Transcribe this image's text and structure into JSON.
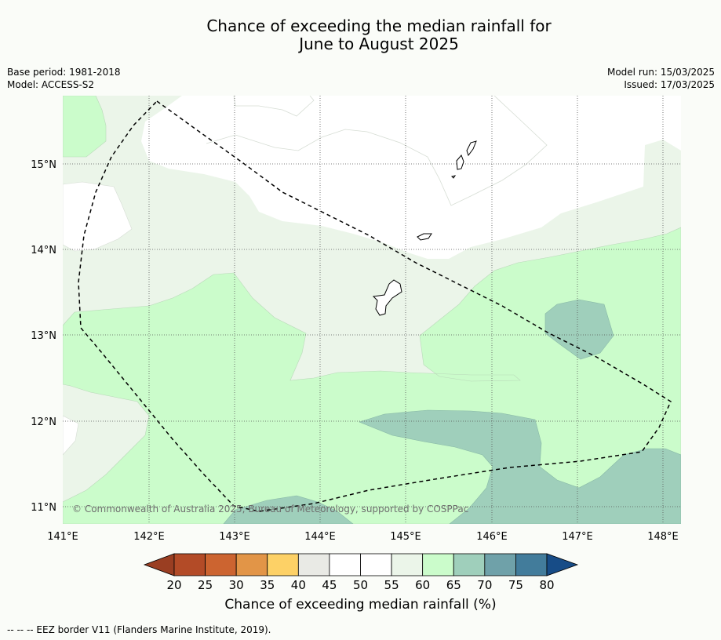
{
  "title": {
    "line1": "Chance of exceeding the median rainfall for",
    "line2": "June to August 2025"
  },
  "meta_left": {
    "base_period": "Base period: 1981-2018",
    "model": "Model: ACCESS-S2"
  },
  "meta_right": {
    "model_run": "Model run: 15/03/2025",
    "issued": "Issued: 17/03/2025"
  },
  "map": {
    "lon_labels": [
      "141°E",
      "142°E",
      "143°E",
      "144°E",
      "145°E",
      "146°E",
      "147°E",
      "148°E"
    ],
    "lat_labels": [
      "15°N",
      "14°N",
      "13°N",
      "12°N",
      "11°N"
    ],
    "copyright": "© Commonwealth of Australia 2025, Bureau of Meteorology, supported by COSPPac"
  },
  "colorbar": {
    "ticks": [
      "20",
      "25",
      "30",
      "35",
      "40",
      "45",
      "50",
      "55",
      "60",
      "65",
      "70",
      "75",
      "80"
    ],
    "colors": [
      "#b34b27",
      "#cc6430",
      "#e29547",
      "#fdd166",
      "#e9eae5",
      "#ffffff",
      "#ffffff",
      "#ebf5e9",
      "#cbfccb",
      "#9fcfbb",
      "#6fa1a9",
      "#427c9b"
    ],
    "under_color": "#9a3e22",
    "over_color": "#174c87",
    "label": "Chance of exceeding median rainfall (%)"
  },
  "footnote": "--  --  -- EEZ border V11 (Flanders Marine Institute, 2019)."
}
